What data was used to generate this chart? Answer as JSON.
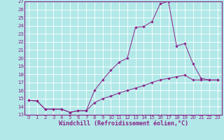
{
  "xlabel": "Windchill (Refroidissement éolien,°C)",
  "background_color": "#b2e8e8",
  "grid_color": "#ffffff",
  "line_color": "#882288",
  "xlim": [
    -0.5,
    23.5
  ],
  "ylim": [
    13,
    27
  ],
  "x_ticks": [
    0,
    1,
    2,
    3,
    4,
    5,
    6,
    7,
    8,
    9,
    10,
    11,
    12,
    13,
    14,
    15,
    16,
    17,
    18,
    19,
    20,
    21,
    22,
    23
  ],
  "y_ticks": [
    13,
    14,
    15,
    16,
    17,
    18,
    19,
    20,
    21,
    22,
    23,
    24,
    25,
    26,
    27
  ],
  "line1_x": [
    0,
    1,
    2,
    3,
    4,
    5,
    6,
    7,
    8,
    9,
    10,
    11,
    12,
    13,
    14,
    15,
    16,
    17,
    18,
    19,
    20,
    21,
    22,
    23
  ],
  "line1_y": [
    14.8,
    14.7,
    13.7,
    13.7,
    13.7,
    13.3,
    13.5,
    13.5,
    16.0,
    17.3,
    18.5,
    19.5,
    20.0,
    23.8,
    23.9,
    24.5,
    26.7,
    27.0,
    21.5,
    21.8,
    19.3,
    17.5,
    17.3,
    17.3
  ],
  "line2_x": [
    0,
    1,
    2,
    3,
    4,
    5,
    6,
    7,
    8,
    9,
    10,
    11,
    12,
    13,
    14,
    15,
    16,
    17,
    18,
    19,
    20,
    21,
    22,
    23
  ],
  "line2_y": [
    14.8,
    14.7,
    13.7,
    13.7,
    13.7,
    13.3,
    13.5,
    13.5,
    14.5,
    15.0,
    15.3,
    15.7,
    16.0,
    16.3,
    16.6,
    17.0,
    17.3,
    17.5,
    17.7,
    17.9,
    17.3,
    17.3,
    17.3,
    17.3
  ],
  "tick_fontsize": 5.0,
  "xlabel_fontsize": 6.0
}
